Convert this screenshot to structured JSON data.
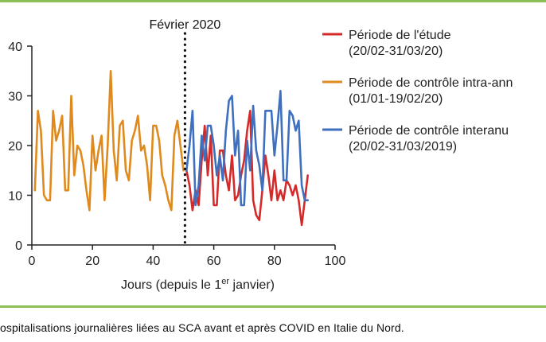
{
  "colors": {
    "rule": "#8cbf55",
    "axis": "#222222",
    "study": "#d42a2a",
    "intra": "#e08a1e",
    "inter": "#3f6fbf"
  },
  "caption": "ospitalisations journalières liées au SCA avant et après COVID en Italie du Nord.",
  "chart_data": {
    "type": "line",
    "title": "",
    "xlabel": "Jours (depuis le 1",
    "xlabel_sup": "er",
    "xlabel_end": " janvier)",
    "ylabel": "",
    "xlim": [
      0,
      100
    ],
    "ylim": [
      0,
      40
    ],
    "xticks": [
      0,
      20,
      40,
      60,
      80,
      100
    ],
    "yticks": [
      0,
      10,
      20,
      30,
      40
    ],
    "grid": false,
    "legend_position": "top-right",
    "annotation": {
      "label": "Février 2020",
      "x": 50.5
    },
    "series": [
      {
        "name": "Période de l'étude",
        "subname": "(20/02-31/03/20)",
        "color_key": "study",
        "x": [
          51,
          52,
          53,
          54,
          55,
          56,
          57,
          58,
          59,
          60,
          61,
          62,
          63,
          64,
          65,
          66,
          67,
          68,
          69,
          70,
          71,
          72,
          73,
          74,
          75,
          76,
          77,
          78,
          79,
          80,
          81,
          82,
          83,
          84,
          85,
          86,
          87,
          88,
          89,
          90,
          91
        ],
        "y": [
          15,
          12,
          7,
          11,
          8,
          17,
          24,
          14,
          22,
          8,
          8,
          19,
          19,
          14,
          11,
          18,
          9,
          10,
          14,
          17,
          23,
          27,
          9,
          6,
          5,
          11,
          18,
          14,
          9,
          15,
          9,
          11,
          9,
          13,
          12,
          10,
          12,
          9,
          4,
          9,
          14
        ]
      },
      {
        "name": "Période de contrôle intra-ann",
        "subname": "(01/01-19/02/20)",
        "color_key": "intra",
        "x": [
          1,
          2,
          3,
          4,
          5,
          6,
          7,
          8,
          9,
          10,
          11,
          12,
          13,
          14,
          15,
          16,
          17,
          18,
          19,
          20,
          21,
          22,
          23,
          24,
          25,
          26,
          27,
          28,
          29,
          30,
          31,
          32,
          33,
          34,
          35,
          36,
          37,
          38,
          39,
          40,
          41,
          42,
          43,
          44,
          45,
          46,
          47,
          48,
          49,
          50
        ],
        "y": [
          11,
          27,
          23,
          10,
          9,
          9,
          27,
          21,
          23,
          26,
          11,
          11,
          30,
          14,
          20,
          19,
          16,
          11,
          7,
          22,
          15,
          19,
          22,
          9,
          20,
          35,
          19,
          13,
          24,
          25,
          15,
          13,
          21,
          23,
          26,
          19,
          20,
          16,
          9,
          24,
          24,
          21,
          14,
          12,
          9,
          7,
          22,
          25,
          20,
          15
        ]
      },
      {
        "name": "Période de contrôle interanu",
        "subname": "(20/02-31/03/2019)",
        "color_key": "inter",
        "x": [
          51,
          52,
          53,
          54,
          55,
          56,
          57,
          58,
          59,
          60,
          61,
          62,
          63,
          64,
          65,
          66,
          67,
          68,
          69,
          70,
          71,
          72,
          73,
          74,
          75,
          76,
          77,
          78,
          79,
          80,
          81,
          82,
          83,
          84,
          85,
          86,
          87,
          88,
          89,
          90,
          91
        ],
        "y": [
          15,
          20,
          27,
          8,
          12,
          22,
          17,
          24,
          24,
          20,
          14,
          18,
          13,
          23,
          29,
          30,
          18,
          23,
          8,
          8,
          21,
          15,
          28,
          19,
          16,
          11,
          27,
          27,
          27,
          18,
          24,
          31,
          13,
          13,
          27,
          26,
          23,
          25,
          12,
          9,
          9
        ]
      }
    ]
  }
}
